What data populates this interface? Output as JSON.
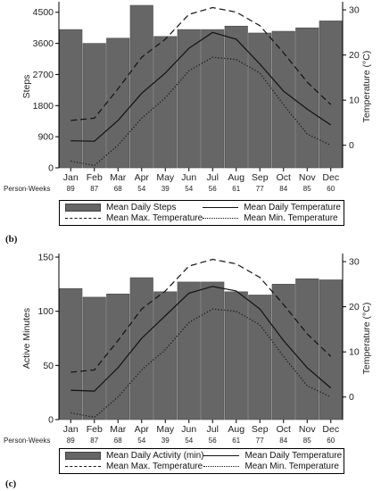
{
  "chart_data": [
    {
      "type": "bar",
      "panel_label": "",
      "categories": [
        "Jan",
        "Feb",
        "Mar",
        "Apr",
        "May",
        "Jun",
        "Jul",
        "Aug",
        "Sep",
        "Oct",
        "Nov",
        "Dec"
      ],
      "person_weeks_label": "Person-Weeks",
      "person_weeks": [
        "89",
        "87",
        "68",
        "54",
        "39",
        "54",
        "56",
        "61",
        "77",
        "84",
        "85",
        "60"
      ],
      "ylabel": "Steps",
      "ylim": [
        0,
        4700
      ],
      "yticks": [
        "0",
        "900",
        "1800",
        "2700",
        "3600",
        "4500"
      ],
      "ytick_values": [
        0,
        900,
        1800,
        2700,
        3600,
        4500
      ],
      "y2label": "Temperature (°C)",
      "y2lim": [
        -5,
        31
      ],
      "y2ticks": [
        "0",
        "10",
        "20",
        "30"
      ],
      "y2tick_values": [
        0,
        10,
        20,
        30
      ],
      "series": [
        {
          "name": "Mean Daily Steps",
          "kind": "bar",
          "axis": "left",
          "values": [
            4000,
            3600,
            3750,
            4700,
            3800,
            4000,
            4000,
            4100,
            3900,
            3950,
            4050,
            4250
          ]
        },
        {
          "name": "Mean Daily Temperature",
          "kind": "line",
          "style": "solid",
          "axis": "right",
          "values": [
            1,
            0.9,
            5.5,
            11.5,
            16,
            21.5,
            25,
            23.5,
            18,
            12,
            8,
            4.5
          ]
        },
        {
          "name": "Mean Max. Temperature",
          "kind": "line",
          "style": "dashed",
          "axis": "right",
          "values": [
            5.5,
            6,
            12.5,
            19.5,
            23.5,
            29,
            30.5,
            29.5,
            26.5,
            20.5,
            14,
            9
          ]
        },
        {
          "name": "Mean Min. Temperature",
          "kind": "line",
          "style": "dotted",
          "axis": "right",
          "values": [
            -3.5,
            -4.5,
            0,
            6,
            10.5,
            16.5,
            19.5,
            19,
            16,
            9,
            2.5,
            0
          ]
        }
      ],
      "legend": [
        "Mean Daily Steps",
        "Mean Daily Temperature",
        "Mean Max. Temperature",
        "Mean Min. Temperature"
      ],
      "legend_position": "bottom",
      "bar_color": "#666666"
    },
    {
      "type": "bar",
      "panel_label": "(b)",
      "categories": [
        "Jan",
        "Feb",
        "Mar",
        "Apr",
        "May",
        "Jun",
        "Jul",
        "Aug",
        "Sep",
        "Oct",
        "Nov",
        "Dec"
      ],
      "person_weeks_label": "Person-Weeks",
      "person_weeks": [
        "89",
        "87",
        "68",
        "54",
        "39",
        "54",
        "56",
        "61",
        "77",
        "84",
        "85",
        "60"
      ],
      "ylabel": "Active Minutes",
      "ylim": [
        0,
        150
      ],
      "yticks": [
        "0",
        "50",
        "100",
        "150"
      ],
      "ytick_values": [
        0,
        50,
        100,
        150
      ],
      "y2label": "Temperature (°C)",
      "y2lim": [
        -5,
        31
      ],
      "y2ticks": [
        "0",
        "10",
        "20",
        "30"
      ],
      "y2tick_values": [
        0,
        10,
        20,
        30
      ],
      "series": [
        {
          "name": "Mean Daily Activity (min)",
          "kind": "bar",
          "axis": "left",
          "values": [
            121,
            113,
            116,
            131,
            118,
            127,
            127,
            118,
            115,
            125,
            130,
            129
          ]
        },
        {
          "name": "Mean Daily Temperature",
          "kind": "line",
          "style": "solid",
          "axis": "right",
          "values": [
            1.5,
            1.3,
            6.5,
            13,
            18,
            23,
            24.5,
            23.5,
            19.5,
            12.5,
            6.5,
            2
          ]
        },
        {
          "name": "Mean Max. Temperature",
          "kind": "line",
          "style": "dashed",
          "axis": "right",
          "values": [
            5.5,
            6,
            12.5,
            19.5,
            23.5,
            29,
            30.5,
            29.5,
            26.5,
            20.5,
            14,
            9
          ]
        },
        {
          "name": "Mean Min. Temperature",
          "kind": "line",
          "style": "dotted",
          "axis": "right",
          "values": [
            -3.5,
            -4.5,
            0,
            6,
            10.5,
            16.5,
            19.5,
            19,
            16,
            9,
            2.5,
            0
          ]
        }
      ],
      "legend": [
        "Mean Daily Activity (min)",
        "Mean Daily Temperature",
        "Mean Max. Temperature",
        "Mean Min. Temperature"
      ],
      "legend_position": "bottom",
      "bar_color": "#666666"
    }
  ],
  "footer_label": "(c)"
}
